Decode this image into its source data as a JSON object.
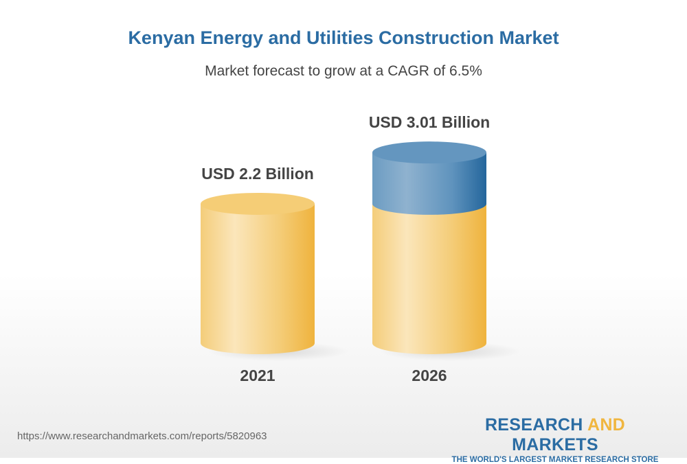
{
  "title": "Kenyan Energy and Utilities Construction Market",
  "subtitle": "Market forecast to grow at a CAGR of 6.5%",
  "chart_data": {
    "type": "bar",
    "categories": [
      "2021",
      "2026"
    ],
    "values": [
      2.2,
      3.01
    ],
    "data_labels": [
      "USD 2.2 Billion",
      "USD 3.01 Billion"
    ],
    "unit": "USD Billion",
    "cagr": "6.5%",
    "colors": {
      "base": "#f0b63f",
      "growth": "#2b6ca3"
    }
  },
  "footer": {
    "url": "https://www.researchandmarkets.com/reports/5820963"
  },
  "logo": {
    "word1": "RESEARCH",
    "word2": "AND",
    "word3": "MARKETS",
    "tagline": "THE WORLD'S LARGEST MARKET RESEARCH STORE"
  }
}
